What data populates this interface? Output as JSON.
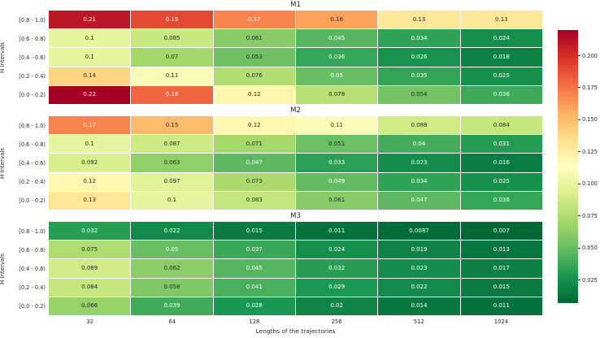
{
  "figure": {
    "background": "#ffffff",
    "xlabel": "Lengths of the trajectories",
    "x_tick_labels": [
      "32",
      "64",
      "128",
      "256",
      "512",
      "1024"
    ],
    "y_tick_labels": [
      "[0.8 - 1.0)",
      "[0.6 - 0.8)",
      "[0.4 - 0.6)",
      "[0.2 - 0.4)",
      "[0.0 - 0.2)"
    ],
    "ylabel": "H Intervals",
    "colorbar": {
      "tick_labels": [
        "0.200",
        "0.175",
        "0.150",
        "0.125",
        "0.100",
        "0.075",
        "0.050",
        "0.025"
      ],
      "tick_values": [
        0.2,
        0.175,
        0.15,
        0.125,
        0.1,
        0.075,
        0.05,
        0.025
      ],
      "vmin": 0.007,
      "vmax": 0.22,
      "colormap": "RdYlGn_r"
    },
    "colormap_anchors": [
      "#a50026",
      "#d73027",
      "#f46d43",
      "#fdae61",
      "#fee08b",
      "#ffffbf",
      "#d9ef8b",
      "#a6d96a",
      "#66bd63",
      "#1a9850",
      "#006837"
    ]
  },
  "chart_data": [
    {
      "type": "heatmap",
      "title": "M1",
      "ylabel": "H Intervals",
      "rows": [
        "[0.8 - 1.0)",
        "[0.6 - 0.8)",
        "[0.4 - 0.6)",
        "[0.2 - 0.4)",
        "[0.0 - 0.2)"
      ],
      "columns": [
        "32",
        "64",
        "128",
        "256",
        "512",
        "1024"
      ],
      "values": [
        [
          0.21,
          0.19,
          0.17,
          0.16,
          0.13,
          0.13
        ],
        [
          0.1,
          0.085,
          0.061,
          0.045,
          0.034,
          0.024
        ],
        [
          0.1,
          0.07,
          0.053,
          0.036,
          0.026,
          0.018
        ],
        [
          0.14,
          0.11,
          0.076,
          0.05,
          0.035,
          0.025
        ],
        [
          0.22,
          0.18,
          0.12,
          0.078,
          0.054,
          0.038
        ]
      ],
      "labels": [
        [
          "0.21",
          "0.19",
          "0.17",
          "0.16",
          "0.13",
          "0.13"
        ],
        [
          "0.1",
          "0.085",
          "0.061",
          "0.045",
          "0.034",
          "0.024"
        ],
        [
          "0.1",
          "0.07",
          "0.053",
          "0.036",
          "0.026",
          "0.018"
        ],
        [
          "0.14",
          "0.11",
          "0.076",
          "0.05",
          "0.035",
          "0.025"
        ],
        [
          "0.22",
          "0.18",
          "0.12",
          "0.078",
          "0.054",
          "0.038"
        ]
      ]
    },
    {
      "type": "heatmap",
      "title": "M2",
      "ylabel": "H Intervals",
      "rows": [
        "[0.8 - 1.0)",
        "[0.6 - 0.8)",
        "[0.4 - 0.6)",
        "[0.2 - 0.4)",
        "[0.0 - 0.2)"
      ],
      "columns": [
        "32",
        "64",
        "128",
        "256",
        "512",
        "1024"
      ],
      "values": [
        [
          0.17,
          0.15,
          0.12,
          0.11,
          0.088,
          0.084
        ],
        [
          0.1,
          0.087,
          0.071,
          0.051,
          0.04,
          0.031
        ],
        [
          0.092,
          0.063,
          0.047,
          0.033,
          0.023,
          0.016
        ],
        [
          0.12,
          0.097,
          0.073,
          0.049,
          0.034,
          0.025
        ],
        [
          0.13,
          0.1,
          0.083,
          0.061,
          0.047,
          0.036
        ]
      ],
      "labels": [
        [
          "0.17",
          "0.15",
          "0.12",
          "0.11",
          "0.088",
          "0.084"
        ],
        [
          "0.1",
          "0.087",
          "0.071",
          "0.051",
          "0.04",
          "0.031"
        ],
        [
          "0.092",
          "0.063",
          "0.047",
          "0.033",
          "0.023",
          "0.016"
        ],
        [
          "0.12",
          "0.097",
          "0.073",
          "0.049",
          "0.034",
          "0.025"
        ],
        [
          "0.13",
          "0.1",
          "0.083",
          "0.061",
          "0.047",
          "0.036"
        ]
      ]
    },
    {
      "type": "heatmap",
      "title": "M3",
      "ylabel": "H Intervals",
      "rows": [
        "[0.8 - 1.0)",
        "[0.6 - 0.8)",
        "[0.4 - 0.6)",
        "[0.2 - 0.4)",
        "[0.0 - 0.2)"
      ],
      "columns": [
        "32",
        "64",
        "128",
        "256",
        "512",
        "1024"
      ],
      "values": [
        [
          0.032,
          0.022,
          0.015,
          0.011,
          0.0087,
          0.007
        ],
        [
          0.075,
          0.05,
          0.037,
          0.024,
          0.019,
          0.013
        ],
        [
          0.089,
          0.062,
          0.045,
          0.032,
          0.023,
          0.017
        ],
        [
          0.084,
          0.058,
          0.041,
          0.029,
          0.022,
          0.015
        ],
        [
          0.066,
          0.039,
          0.028,
          0.02,
          0.014,
          0.011
        ]
      ],
      "labels": [
        [
          "0.032",
          "0.022",
          "0.015",
          "0.011",
          "0.0087",
          "0.007"
        ],
        [
          "0.075",
          "0.05",
          "0.037",
          "0.024",
          "0.019",
          "0.013"
        ],
        [
          "0.089",
          "0.062",
          "0.045",
          "0.032",
          "0.023",
          "0.017"
        ],
        [
          "0.084",
          "0.058",
          "0.041",
          "0.029",
          "0.022",
          "0.015"
        ],
        [
          "0.066",
          "0.039",
          "0.028",
          "0.02",
          "0.014",
          "0.011"
        ]
      ]
    }
  ]
}
